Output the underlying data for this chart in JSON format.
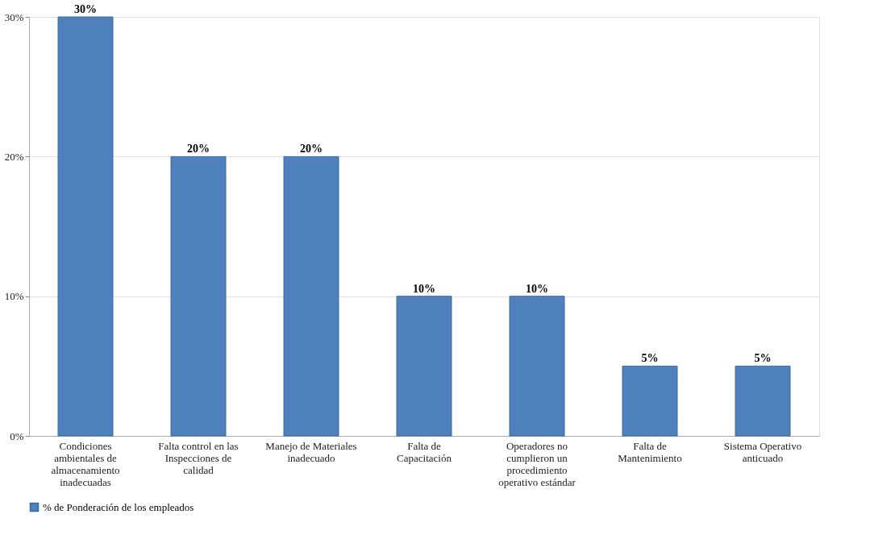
{
  "chart_data": {
    "type": "bar",
    "categories": [
      "Condiciones ambientales de almacenamiento inadecuadas",
      "Falta control en las Inspecciones de calidad",
      "Manejo de Materiales inadecuado",
      "Falta de Capacitación",
      "Operadores no cumplieron un procedimiento operativo estándar",
      "Falta de Mantenimiento",
      "Sistema Operativo anticuado"
    ],
    "series": [
      {
        "name": "% de Ponderación de los empleados",
        "color": "#4f81bd",
        "values": [
          30,
          20,
          20,
          10,
          10,
          5,
          5
        ],
        "value_labels": [
          "30%",
          "20%",
          "20%",
          "10%",
          "10%",
          "5%",
          "5%"
        ]
      }
    ],
    "ylim": [
      0,
      30
    ],
    "yticks": [
      {
        "value": 0,
        "label": "0%"
      },
      {
        "value": 10,
        "label": "10%"
      },
      {
        "value": 20,
        "label": "20%"
      },
      {
        "value": 30,
        "label": "30%"
      }
    ],
    "grid": "y",
    "legend": "bottom"
  }
}
